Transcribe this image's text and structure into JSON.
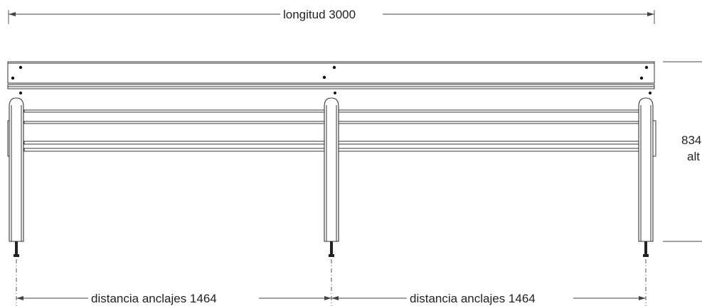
{
  "dimensions": {
    "length_label": "longitud  3000",
    "height_value": "834",
    "height_label": "alt",
    "anchor_left_label": "distancia anclajes  1464",
    "anchor_right_label": "distancia anclajes  1464"
  }
}
